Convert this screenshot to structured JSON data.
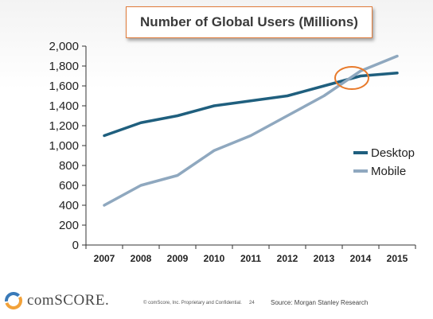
{
  "title": "Number of Global Users (Millions)",
  "footer": {
    "logo_text": "comSCORE.",
    "legal": "© comScore, Inc.  Proprietary and Confidential.",
    "page_number": "24",
    "source": "Source: Morgan Stanley Research"
  },
  "colors": {
    "desktop": "#1f5f7e",
    "mobile": "#8fa8bf",
    "highlight": "#e87a2b",
    "title_border": "#e07b3a"
  },
  "chart_data": {
    "type": "line",
    "title": "Number of Global Users (Millions)",
    "x": [
      "2007",
      "2008",
      "2009",
      "2010",
      "2011",
      "2012",
      "2013",
      "2014",
      "2015"
    ],
    "ylim": [
      0,
      2000
    ],
    "yticks": [
      0,
      200,
      400,
      600,
      800,
      1000,
      1200,
      1400,
      1600,
      1800,
      2000
    ],
    "ytick_labels": [
      "0",
      "200",
      "400",
      "600",
      "800",
      "1,000",
      "1,200",
      "1,400",
      "1,600",
      "1,800",
      "2,000"
    ],
    "grid": false,
    "legend_position": "right",
    "series": [
      {
        "name": "Desktop",
        "values": [
          1100,
          1230,
          1300,
          1400,
          1450,
          1500,
          1600,
          1700,
          1730
        ]
      },
      {
        "name": "Mobile",
        "values": [
          400,
          600,
          700,
          950,
          1100,
          1300,
          1500,
          1750,
          1900
        ]
      }
    ],
    "annotation": {
      "type": "circle",
      "x": "2014",
      "y": 1680,
      "note": "crossover"
    }
  }
}
